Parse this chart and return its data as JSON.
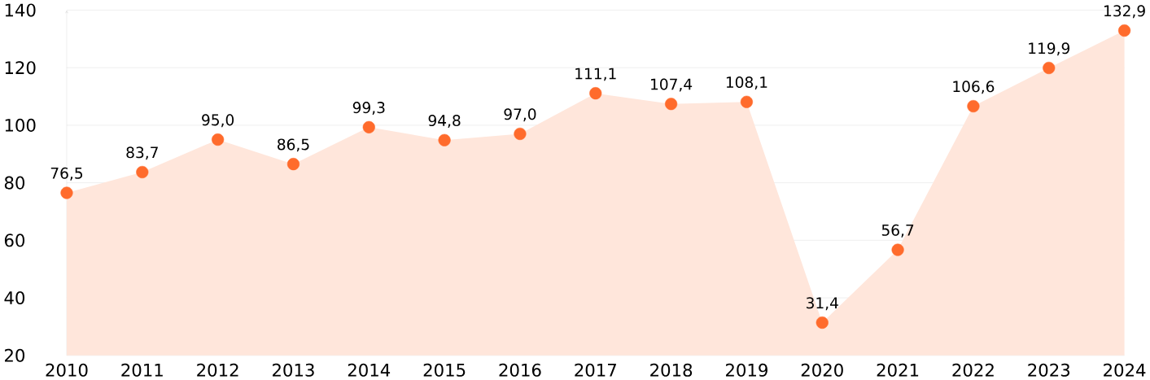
{
  "chart_data": {
    "type": "area",
    "x": [
      2010,
      2011,
      2012,
      2013,
      2014,
      2015,
      2016,
      2017,
      2018,
      2019,
      2020,
      2021,
      2022,
      2023,
      2024
    ],
    "series": [
      {
        "color": "#ff6b2c",
        "values": [
          76.5,
          83.7,
          95.0,
          86.5,
          99.3,
          94.8,
          97.0,
          111.1,
          107.4,
          108.1,
          31.4,
          56.7,
          106.6,
          119.9,
          132.9
        ],
        "value_labels": [
          "76,5",
          "83,7",
          "95,0",
          "86,5",
          "99,3",
          "94,8",
          "97,0",
          "111,1",
          "107,4",
          "108,1",
          "31,4",
          "56,7",
          "106,6",
          "119,9",
          "132,9"
        ]
      }
    ],
    "xlim": [
      2010,
      2024
    ],
    "xticks": [
      2010,
      2011,
      2012,
      2013,
      2014,
      2015,
      2016,
      2017,
      2018,
      2019,
      2020,
      2021,
      2022,
      2023,
      2024
    ],
    "ylim": [
      20,
      140
    ],
    "yticks": [
      20,
      40,
      60,
      80,
      100,
      120,
      140
    ],
    "grid": "y",
    "marker": "circle"
  }
}
